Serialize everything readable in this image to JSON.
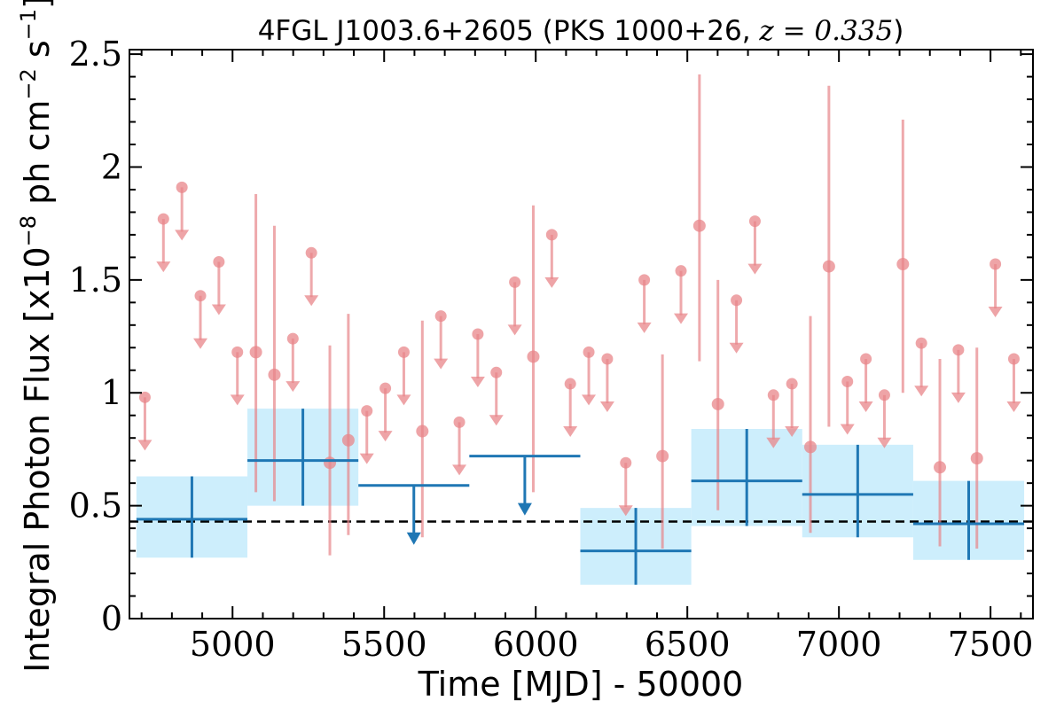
{
  "chart_data": {
    "type": "scatter",
    "title_main": "4FGL J1003.6+2605 (PKS 1000+26, ",
    "title_z": "z = 0.335",
    "title_close": ")",
    "xlabel": "Time [MJD] - 50000",
    "ylabel_main": "Integral Photon Flux [x10",
    "ylabel_exp1": "−8",
    "ylabel_mid": " ph cm",
    "ylabel_exp2": "−2",
    "ylabel_s": " s",
    "ylabel_exp3": "−1",
    "ylabel_close": "]",
    "xlim": [
      4660,
      7640
    ],
    "ylim": [
      0,
      2.52
    ],
    "x_ticks": [
      5000,
      5500,
      6000,
      6500,
      7000,
      7500
    ],
    "x_tick_labels": [
      "5000",
      "5500",
      "6000",
      "6500",
      "7000",
      "7500"
    ],
    "y_ticks": [
      0,
      0.5,
      1,
      1.5,
      2,
      2.5
    ],
    "y_tick_labels": [
      "0",
      "0.5",
      "1",
      "1.5",
      "2",
      "2.5"
    ],
    "baseline_flux": 0.43,
    "colors": {
      "short_bins": "#e8868a",
      "long_bins": "#1f77b4",
      "long_band": "#cdeefc",
      "baseline": "#000000"
    },
    "short_bin_detections": [
      {
        "x": 5077,
        "y": 1.18,
        "ylo": 0.56,
        "yhi": 1.88
      },
      {
        "x": 5138,
        "y": 1.08,
        "ylo": 0.52,
        "yhi": 1.74
      },
      {
        "x": 5321,
        "y": 0.69,
        "ylo": 0.28,
        "yhi": 1.21
      },
      {
        "x": 5382,
        "y": 0.79,
        "ylo": 0.37,
        "yhi": 1.35
      },
      {
        "x": 5626,
        "y": 0.83,
        "ylo": 0.36,
        "yhi": 1.32
      },
      {
        "x": 5992,
        "y": 1.16,
        "ylo": 0.56,
        "yhi": 1.83
      },
      {
        "x": 6418,
        "y": 0.72,
        "ylo": 0.31,
        "yhi": 1.17
      },
      {
        "x": 6540,
        "y": 1.74,
        "ylo": 1.14,
        "yhi": 2.41
      },
      {
        "x": 6601,
        "y": 0.95,
        "ylo": 0.48,
        "yhi": 1.5
      },
      {
        "x": 6906,
        "y": 0.76,
        "ylo": 0.38,
        "yhi": 1.34
      },
      {
        "x": 6967,
        "y": 1.56,
        "ylo": 0.85,
        "yhi": 2.36
      },
      {
        "x": 7211,
        "y": 1.57,
        "ylo": 1.0,
        "yhi": 2.21
      },
      {
        "x": 7333,
        "y": 0.67,
        "ylo": 0.32,
        "yhi": 1.15
      },
      {
        "x": 7455,
        "y": 0.71,
        "ylo": 0.31,
        "yhi": 1.2
      }
    ],
    "short_bin_upper_limits": [
      {
        "x": 4711,
        "y": 0.98
      },
      {
        "x": 4772,
        "y": 1.77
      },
      {
        "x": 4833,
        "y": 1.91
      },
      {
        "x": 4894,
        "y": 1.43
      },
      {
        "x": 4955,
        "y": 1.58
      },
      {
        "x": 5016,
        "y": 1.18
      },
      {
        "x": 5199,
        "y": 1.24
      },
      {
        "x": 5260,
        "y": 1.62
      },
      {
        "x": 5443,
        "y": 0.92
      },
      {
        "x": 5504,
        "y": 1.02
      },
      {
        "x": 5565,
        "y": 1.18
      },
      {
        "x": 5687,
        "y": 1.34
      },
      {
        "x": 5748,
        "y": 0.87
      },
      {
        "x": 5809,
        "y": 1.26
      },
      {
        "x": 5870,
        "y": 1.09
      },
      {
        "x": 5931,
        "y": 1.49
      },
      {
        "x": 6053,
        "y": 1.7
      },
      {
        "x": 6114,
        "y": 1.04
      },
      {
        "x": 6175,
        "y": 1.18
      },
      {
        "x": 6236,
        "y": 1.15
      },
      {
        "x": 6297,
        "y": 0.69
      },
      {
        "x": 6358,
        "y": 1.5
      },
      {
        "x": 6479,
        "y": 1.54
      },
      {
        "x": 6662,
        "y": 1.41
      },
      {
        "x": 6723,
        "y": 1.76
      },
      {
        "x": 6784,
        "y": 0.99
      },
      {
        "x": 6845,
        "y": 1.04
      },
      {
        "x": 7028,
        "y": 1.05
      },
      {
        "x": 7089,
        "y": 1.15
      },
      {
        "x": 7150,
        "y": 0.99
      },
      {
        "x": 7272,
        "y": 1.22
      },
      {
        "x": 7394,
        "y": 1.19
      },
      {
        "x": 7516,
        "y": 1.57
      },
      {
        "x": 7577,
        "y": 1.15
      }
    ],
    "long_bin_detections": [
      {
        "x0": 4683,
        "x1": 5049,
        "xc": 4866,
        "y": 0.44,
        "ylo": 0.27,
        "yhi": 0.63
      },
      {
        "x0": 5049,
        "x1": 5415,
        "xc": 5232,
        "y": 0.7,
        "ylo": 0.5,
        "yhi": 0.93
      },
      {
        "x0": 6147,
        "x1": 6513,
        "xc": 6330,
        "y": 0.3,
        "ylo": 0.15,
        "yhi": 0.49
      },
      {
        "x0": 6513,
        "x1": 6879,
        "xc": 6696,
        "y": 0.61,
        "ylo": 0.41,
        "yhi": 0.84
      },
      {
        "x0": 6879,
        "x1": 7245,
        "xc": 7062,
        "y": 0.55,
        "ylo": 0.36,
        "yhi": 0.77
      },
      {
        "x0": 7245,
        "x1": 7611,
        "xc": 7428,
        "y": 0.42,
        "ylo": 0.26,
        "yhi": 0.61
      }
    ],
    "long_bin_upper_limits": [
      {
        "x0": 5415,
        "x1": 5781,
        "xc": 5598,
        "y": 0.59
      },
      {
        "x0": 5781,
        "x1": 6147,
        "xc": 5964,
        "y": 0.72
      }
    ]
  }
}
